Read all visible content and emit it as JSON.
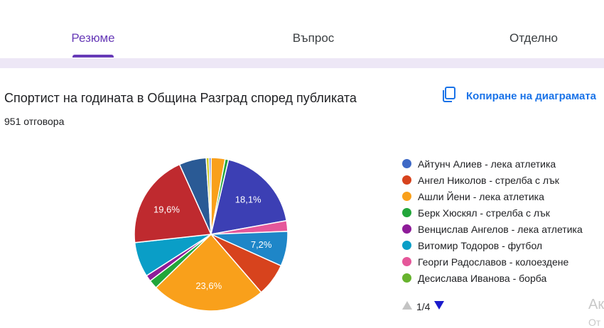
{
  "tabs": [
    {
      "label": "Резюме",
      "active": true
    },
    {
      "label": "Въпрос",
      "active": false
    },
    {
      "label": "Отделно",
      "active": false
    }
  ],
  "question": {
    "title": "Спортист на годината в Община Разград според публиката",
    "response_count": "951 отговора",
    "copy_label": "Копиране на диаграмата"
  },
  "chart_data": {
    "type": "pie",
    "categories": [
      "Айтунч Алиев - лека атлетика",
      "Ангел Николов - стрелба с лък",
      "Ашли Йени - лека атлетика",
      "Берк Хюскял - стрелба с лък",
      "Венцислав Ангелов - лека атлетика",
      "Витомир Тодоров - футбол",
      "Георги Радославов - колоездене",
      "Десислава Иванова - борба"
    ],
    "slices": [
      {
        "color": "#f9a01b",
        "value": 2.9,
        "label": ""
      },
      {
        "color": "#22a63a",
        "value": 0.7,
        "label": ""
      },
      {
        "color": "#3c3fb4",
        "value": 18.1,
        "label": "18,1%"
      },
      {
        "color": "#e5579a",
        "value": 2.2,
        "label": ""
      },
      {
        "color": "#1e86c8",
        "value": 7.2,
        "label": "7,2%"
      },
      {
        "color": "#d7431d",
        "value": 6.8,
        "label": ""
      },
      {
        "color": "#f9a01b",
        "value": 23.6,
        "label": "23,6%"
      },
      {
        "color": "#22a63a",
        "value": 1.8,
        "label": ""
      },
      {
        "color": "#8e1c99",
        "value": 1.3,
        "label": ""
      },
      {
        "color": "#0a9ec7",
        "value": 7.2,
        "label": ""
      },
      {
        "color": "#bf2a2f",
        "value": 19.6,
        "label": "19,6%"
      },
      {
        "color": "#2a5a95",
        "value": 5.6,
        "label": ""
      },
      {
        "color": "#c7c71a",
        "value": 0.6,
        "label": ""
      },
      {
        "color": "#4a6bd6",
        "value": 0.4,
        "label": ""
      }
    ]
  },
  "legend": {
    "items": [
      {
        "label": "Айтунч Алиев - лека атлетика",
        "color": "#3e69c6"
      },
      {
        "label": "Ангел Николов - стрелба с лък",
        "color": "#d7431d"
      },
      {
        "label": "Ашли Йени - лека атлетика",
        "color": "#f9a01b"
      },
      {
        "label": "Берк Хюскял - стрелба с лък",
        "color": "#22a63a"
      },
      {
        "label": "Венцислав Ангелов - лека атлетика",
        "color": "#8e1c99"
      },
      {
        "label": "Витомир Тодоров - футбол",
        "color": "#0a9ec7"
      },
      {
        "label": "Георги Радославов - колоездене",
        "color": "#e5579a"
      },
      {
        "label": "Десислава Иванова - борба",
        "color": "#67b32e"
      }
    ],
    "page": "1/4"
  },
  "watermark": {
    "line1": "Ак",
    "line2": "От"
  },
  "colors": {
    "accent": "#673ab7",
    "link": "#1a73e8",
    "band": "#ede7f6"
  }
}
